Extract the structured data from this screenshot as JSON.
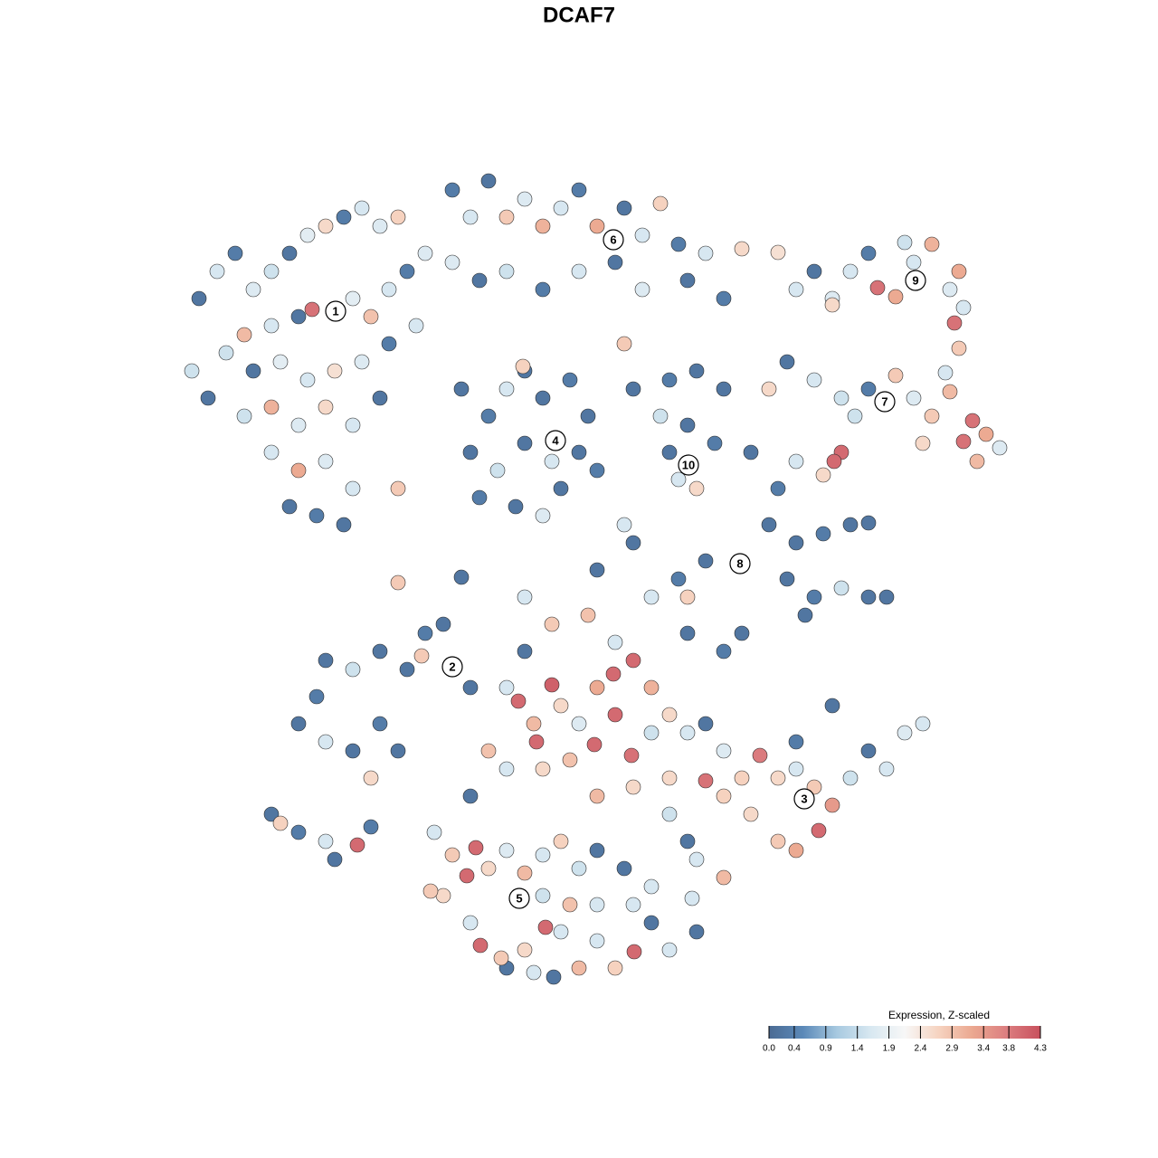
{
  "chart_data": {
    "type": "scatter",
    "title": "DCAF7",
    "xlim": [
      0,
      1280
    ],
    "ylim": [
      1280,
      0
    ],
    "x": [
      220,
      240,
      260,
      280,
      300,
      320,
      340,
      360,
      380,
      400,
      420,
      440,
      300,
      330,
      345,
      390,
      410,
      430,
      450,
      470,
      250,
      280,
      310,
      340,
      370,
      400,
      430,
      460,
      230,
      270,
      300,
      330,
      360,
      390,
      420,
      300,
      330,
      360,
      390,
      320,
      350,
      380,
      440,
      212,
      270,
      500,
      520,
      540,
      560,
      580,
      600,
      620,
      640,
      660,
      690,
      710,
      730,
      750,
      780,
      820,
      500,
      530,
      560,
      600,
      640,
      680,
      710,
      760,
      800,
      690,
      860,
      510,
      540,
      560,
      580,
      600,
      630,
      650,
      520,
      550,
      580,
      610,
      640,
      530,
      570,
      600,
      620,
      660,
      578,
      700,
      740,
      770,
      800,
      730,
      760,
      790,
      740,
      770,
      750,
      700,
      660,
      440,
      510,
      580,
      690,
      830,
      860,
      850,
      880,
      910,
      940,
      960,
      870,
      900,
      930,
      960,
      980,
      890,
      780,
      750,
      760,
      720,
      880,
      900,
      920,
      940,
      960,
      970,
      990,
      1010,
      1030,
      1050,
      1060,
      1055,
      1065,
      920,
      1060,
      1000,
      850,
      870,
      900,
      930,
      960,
      990,
      1010,
      1030,
      1050,
      1075,
      1065,
      1090,
      1105,
      1080,
      1020,
      930,
      922,
      910,
      880,
      1045,
      945,
      300,
      310,
      330,
      360,
      395,
      370,
      410,
      330,
      360,
      390,
      420,
      440,
      410,
      360,
      390,
      420,
      450,
      470,
      490,
      466,
      520,
      350,
      560,
      573,
      590,
      610,
      620,
      640,
      660,
      678,
      700,
      720,
      740,
      760,
      780,
      800,
      820,
      840,
      860,
      880,
      900,
      920,
      905,
      940,
      960,
      980,
      1000,
      1020,
      920,
      880,
      780,
      800,
      830,
      860,
      880,
      800,
      770,
      760,
      593,
      657,
      698,
      630,
      600,
      560,
      540,
      520,
      660,
      700,
      740,
      610,
      650,
      760,
      800,
      820,
      580,
      680,
      720,
      740,
      680,
      480,
      500,
      516,
      526,
      540,
      560,
      580,
      600,
      620,
      640,
      660,
      690,
      700,
      720,
      740,
      701,
      680,
      660,
      640,
      620,
      603,
      580,
      560,
      531,
      520,
      554,
      490,
      476,
      600,
      630,
      660,
      720,
      765,
      770,
      612,
      590
    ],
    "y": [
      330,
      300,
      280,
      320,
      300,
      280,
      260,
      250,
      240,
      230,
      250,
      240,
      360,
      350,
      342,
      330,
      350,
      320,
      300,
      280,
      390,
      410,
      400,
      420,
      410,
      400,
      380,
      360,
      440,
      460,
      450,
      470,
      450,
      470,
      440,
      500,
      520,
      510,
      540,
      560,
      570,
      580,
      540,
      410,
      370,
      210,
      240,
      200,
      240,
      220,
      250,
      230,
      210,
      250,
      230,
      260,
      225,
      270,
      280,
      275,
      290,
      310,
      300,
      320,
      300,
      290,
      320,
      310,
      330,
      380,
      279,
      430,
      460,
      430,
      410,
      440,
      420,
      460,
      500,
      520,
      490,
      510,
      500,
      550,
      560,
      570,
      540,
      520,
      405,
      430,
      420,
      410,
      430,
      460,
      470,
      490,
      500,
      540,
      530,
      600,
      630,
      644,
      638,
      660,
      580,
      500,
      540,
      580,
      600,
      590,
      580,
      578,
      640,
      660,
      650,
      660,
      660,
      680,
      620,
      640,
      660,
      660,
      320,
      300,
      330,
      300,
      280,
      318,
      328,
      290,
      270,
      320,
      300,
      357,
      340,
      337,
      385,
      268,
      430,
      400,
      420,
      440,
      430,
      415,
      440,
      460,
      433,
      465,
      488,
      480,
      495,
      510,
      490,
      500,
      510,
      525,
      510,
      412,
      460,
      900,
      910,
      920,
      930,
      934,
      950,
      914,
      800,
      820,
      830,
      800,
      830,
      860,
      730,
      740,
      720,
      740,
      700,
      690,
      725,
      760,
      770,
      760,
      775,
      800,
      757,
      780,
      800,
      760,
      745,
      730,
      760,
      790,
      810,
      800,
      830,
      860,
      835,
      860,
      850,
      870,
      890,
      918,
      860,
      830,
      850,
      810,
      800,
      780,
      820,
      863,
      880,
      900,
      930,
      940,
      970,
      950,
      930,
      820,
      823,
      835,
      840,
      850,
      850,
      830,
      880,
      880,
      870,
      900,
      690,
      680,
      700,
      720,
      700,
      720,
      710,
      810,
      860,
      790,
      920,
      945,
      968,
      937,
      960,
      940,
      965,
      945,
      930,
      960,
      940,
      960,
      1000,
      1020,
      1050,
      1052,
      1070,
      1040,
      1070,
      1030,
      1025,
      1050,
      1070,
      1045,
      1020,
      1059,
      990,
      985,
      990,
      1000,
      1000,
      980,
      993,
      1030,
      1080,
      1075
    ],
    "values": [
      0.2,
      1.6,
      0.3,
      1.7,
      1.5,
      0.2,
      1.8,
      2.6,
      0.3,
      1.6,
      1.7,
      2.7,
      1.6,
      0.2,
      3.9,
      1.8,
      2.9,
      1.6,
      0.3,
      1.7,
      1.5,
      0.2,
      1.8,
      1.6,
      2.5,
      1.7,
      0.3,
      1.6,
      0.2,
      1.5,
      3.1,
      1.7,
      2.6,
      1.6,
      0.2,
      1.6,
      3.2,
      1.7,
      1.6,
      0.2,
      0.3,
      0.2,
      2.8,
      1.5,
      3.0,
      0.3,
      1.6,
      0.2,
      2.8,
      1.7,
      3.1,
      1.6,
      0.3,
      3.2,
      0.2,
      1.6,
      2.7,
      0.3,
      1.6,
      2.6,
      1.7,
      0.2,
      1.5,
      0.3,
      1.6,
      0.2,
      1.7,
      0.2,
      0.3,
      2.8,
      2.5,
      0.2,
      0.3,
      1.6,
      0.2,
      0.2,
      0.3,
      0.2,
      0.2,
      1.5,
      0.2,
      1.6,
      0.2,
      0.3,
      0.2,
      1.7,
      0.2,
      0.3,
      2.7,
      0.2,
      0.3,
      0.2,
      0.2,
      1.5,
      0.2,
      0.3,
      0.2,
      2.6,
      1.6,
      0.2,
      0.2,
      2.8,
      0.2,
      1.6,
      1.6,
      0.2,
      0.3,
      0.2,
      0.2,
      0.3,
      0.2,
      0.2,
      0.2,
      0.3,
      1.5,
      0.2,
      0.2,
      0.2,
      0.2,
      0.3,
      2.7,
      1.6,
      1.6,
      0.2,
      1.7,
      1.6,
      0.3,
      3.9,
      3.2,
      1.6,
      3.1,
      1.7,
      3.2,
      3.9,
      1.6,
      2.6,
      2.8,
      1.5,
      2.6,
      0.2,
      1.6,
      1.5,
      0.3,
      2.8,
      1.7,
      2.8,
      3.0,
      3.9,
      3.9,
      3.2,
      1.7,
      3.0,
      2.6,
      4.0,
      4.0,
      2.6,
      1.6,
      1.6,
      1.5,
      0.2,
      2.7,
      0.3,
      1.6,
      4.0,
      0.2,
      0.3,
      0.2,
      1.6,
      0.2,
      0.3,
      0.2,
      2.6,
      0.2,
      1.5,
      0.2,
      0.2,
      0.3,
      0.2,
      2.8,
      0.2,
      0.3,
      1.6,
      4.0,
      3.0,
      4.1,
      2.6,
      1.7,
      3.2,
      4.0,
      4.0,
      3.1,
      2.6,
      1.6,
      0.2,
      1.7,
      2.7,
      3.8,
      2.6,
      1.6,
      2.8,
      3.4,
      4.0,
      1.5,
      0.2,
      1.6,
      1.7,
      1.6,
      0.2,
      0.3,
      3.9,
      2.7,
      2.6,
      2.8,
      3.2,
      3.0,
      1.6,
      0.2,
      4.0,
      4.0,
      3.9,
      2.9,
      2.6,
      1.6,
      2.9,
      0.2,
      3.0,
      2.6,
      1.5,
      2.8,
      2.9,
      0.2,
      0.3,
      0.2,
      0.2,
      1.6,
      1.5,
      2.6,
      4.0,
      1.6,
      2.8,
      4.0,
      4.0,
      2.6,
      1.7,
      3.0,
      1.6,
      2.7,
      1.5,
      0.2,
      0.2,
      1.6,
      0.2,
      1.6,
      4.0,
      2.7,
      1.6,
      3.0,
      1.6,
      4.0,
      2.6,
      0.2,
      4.0,
      1.6,
      2.8,
      2.6,
      2.8,
      1.5,
      2.9,
      1.6,
      1.6,
      1.6,
      0.2,
      0.2,
      1.6
    ],
    "annotations": [
      {
        "text": "1",
        "x": 371,
        "y": 344
      },
      {
        "text": "2",
        "x": 500,
        "y": 737
      },
      {
        "text": "3",
        "x": 889,
        "y": 883
      },
      {
        "text": "4",
        "x": 614,
        "y": 487
      },
      {
        "text": "5",
        "x": 574,
        "y": 993
      },
      {
        "text": "6",
        "x": 678,
        "y": 265
      },
      {
        "text": "7",
        "x": 978,
        "y": 444
      },
      {
        "text": "8",
        "x": 818,
        "y": 623
      },
      {
        "text": "9",
        "x": 1012,
        "y": 310
      },
      {
        "text": "10",
        "x": 761,
        "y": 514
      }
    ],
    "colorbar": {
      "title": "Expression, Z-scaled",
      "clim": [
        0,
        4.3
      ],
      "colors": [
        "#4b6b94",
        "#5b89b8",
        "#a7c9e0",
        "#d8e8f1",
        "#f7f7f7",
        "#f6d3c0",
        "#eba890",
        "#dc7e80",
        "#c8505d"
      ],
      "ticks": [
        {
          "value": 0,
          "label": "0.0"
        },
        0.4,
        0.9,
        1.4,
        1.9,
        2.4,
        2.9,
        3.4,
        3.8,
        4.3
      ]
    }
  }
}
